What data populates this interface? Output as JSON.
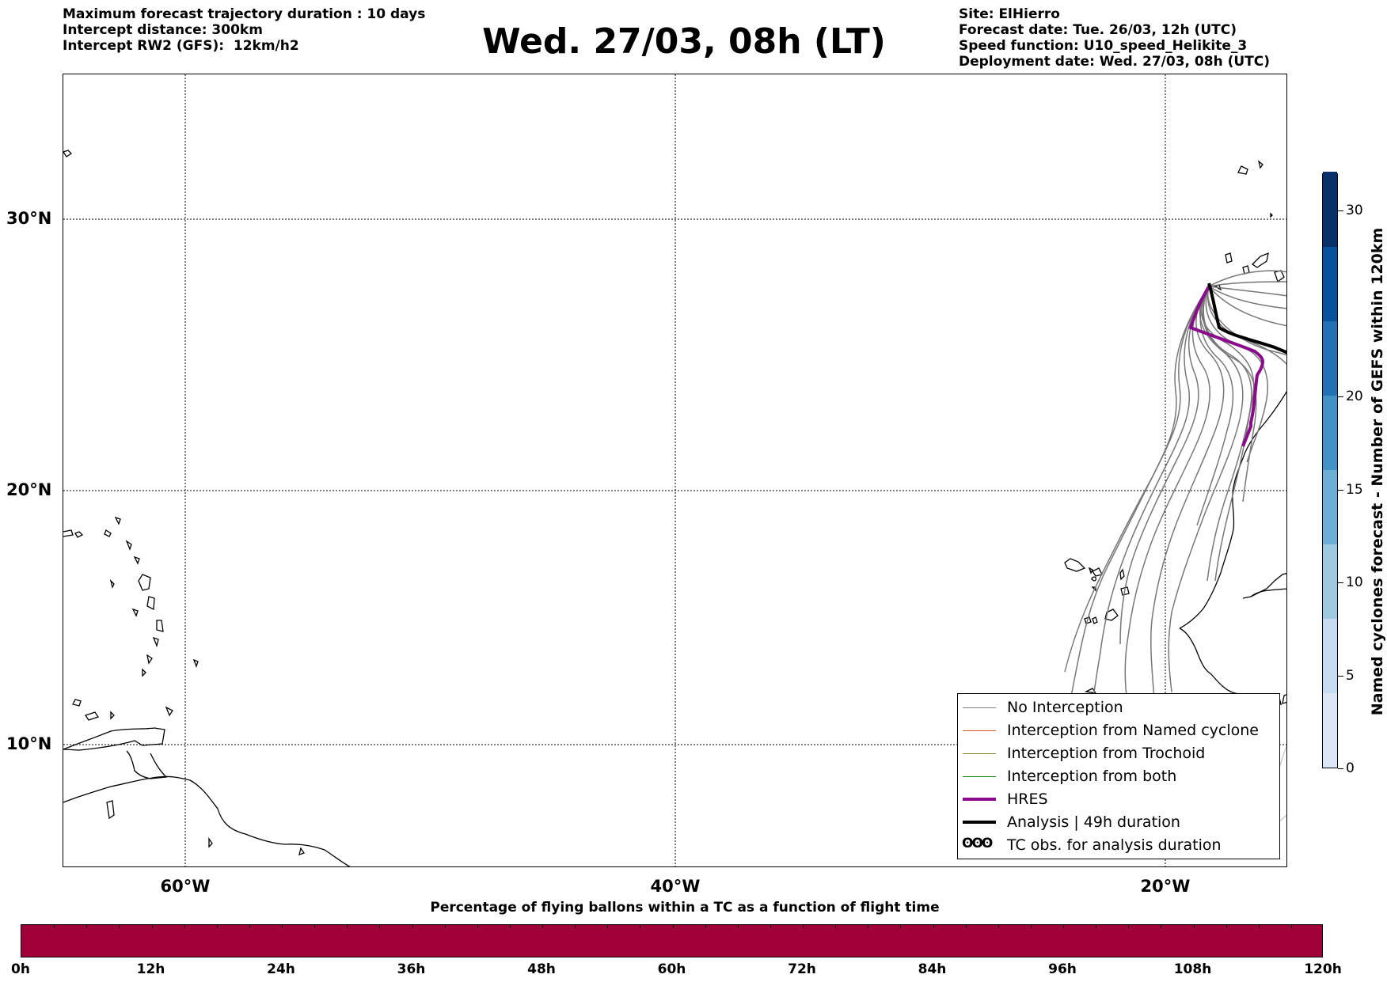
{
  "header": {
    "left_lines": [
      "Maximum forecast trajectory duration : 10 days",
      "Intercept distance: 300km",
      "Intercept RW2 (GFS):  12km/h2"
    ],
    "title": "Wed. 27/03, 08h (LT)",
    "right_lines": [
      "Site: ElHierro",
      "Forecast date: Tue. 26/03, 12h (UTC)",
      "Speed function: U10_speed_Helikite_3",
      "Deployment date: Wed. 27/03, 08h (UTC)"
    ]
  },
  "map": {
    "lat_labels": [
      "30°N",
      "20°N",
      "10°N"
    ],
    "lon_labels": [
      "60°W",
      "40°W",
      "20°W"
    ],
    "gridline_style": "dotted",
    "colors": {
      "coastline": "#000000",
      "trajectory": "#777777",
      "trajectory_faded": "#cccccc",
      "hres": "#8b0a8c",
      "analysis": "#000000"
    }
  },
  "legend": {
    "items": [
      {
        "label": "No Interception",
        "color": "#808080",
        "style": "thin"
      },
      {
        "label": "Interception from Named cyclone",
        "color": "#e0501e",
        "style": "thin"
      },
      {
        "label": "Interception from Trochoid",
        "color": "#7f7f1e",
        "style": "thin"
      },
      {
        "label": "Interception from both",
        "color": "#1e7f1e",
        "style": "thin"
      },
      {
        "label": "HRES",
        "color": "#8b0a8c",
        "style": "thick"
      },
      {
        "label": "Analysis | 49h duration",
        "color": "#000000",
        "style": "thick"
      },
      {
        "label": "TC obs. for analysis duration",
        "color": "#000000",
        "style": "symbol"
      }
    ],
    "tc_symbol": "ʘʘʘ"
  },
  "colorbar": {
    "title": "Named cyclones forecast - Number of GEFS within 120km",
    "ticks": [
      "0",
      "5",
      "10",
      "15",
      "20",
      "30"
    ],
    "tick_values": [
      0,
      5,
      10,
      15,
      20,
      30
    ],
    "range": [
      0,
      32
    ],
    "colors": [
      "#dbe7f5",
      "#c6dbef",
      "#9ecae1",
      "#6baed6",
      "#4292c6",
      "#2171b5",
      "#08519c",
      "#08306b"
    ]
  },
  "percentage_bar": {
    "title": "Percentage of flying ballons within a TC as a function of flight time",
    "labels": [
      "0h",
      "12h",
      "24h",
      "36h",
      "48h",
      "60h",
      "72h",
      "84h",
      "96h",
      "108h",
      "120h"
    ],
    "color": "#a0003a"
  }
}
